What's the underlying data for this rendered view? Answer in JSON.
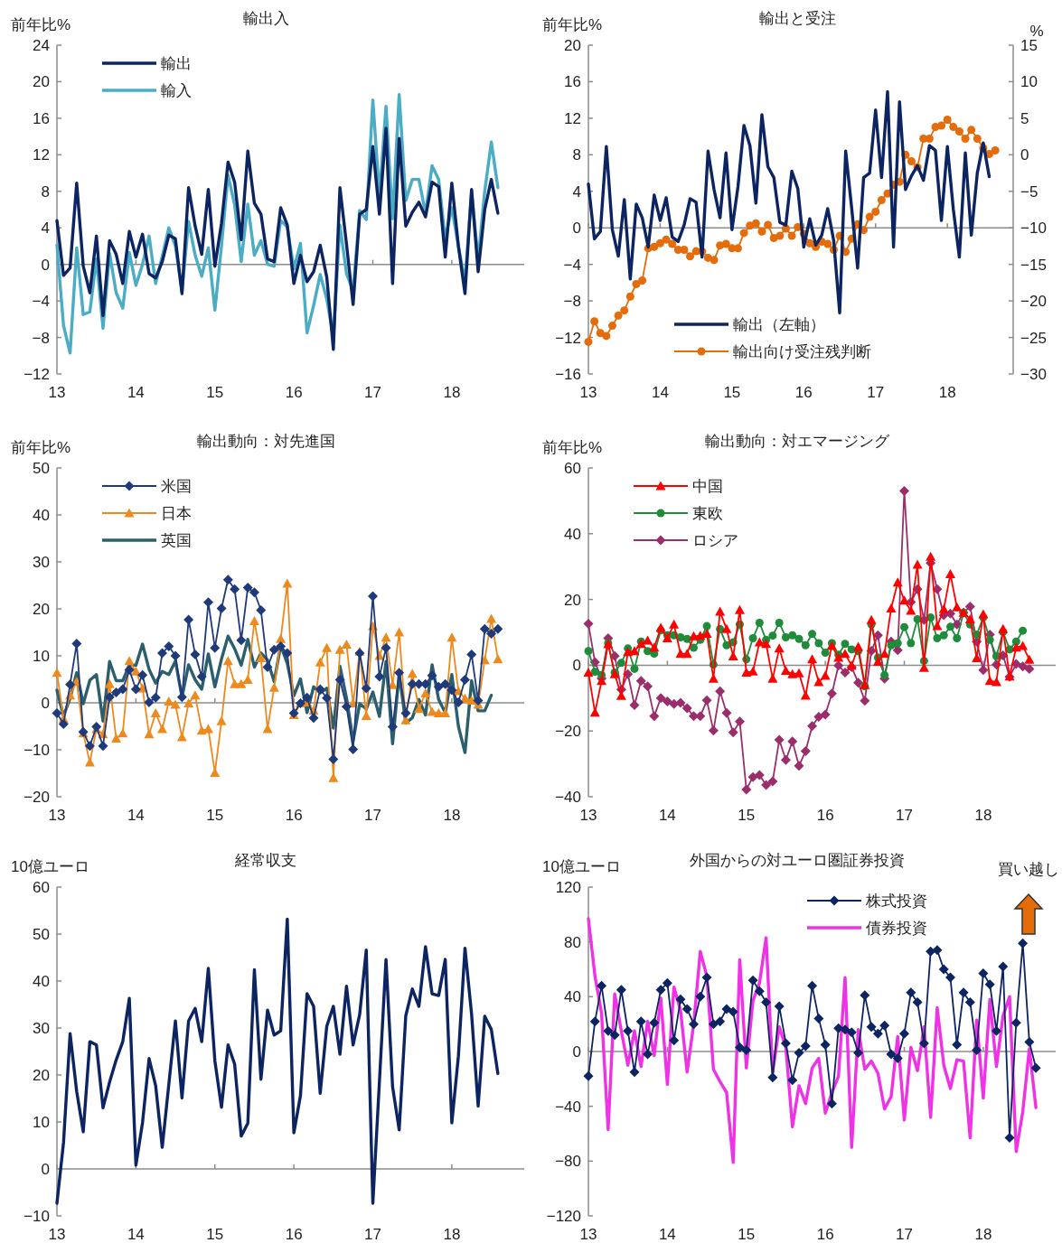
{
  "chart_data": [
    {
      "type": "line",
      "title": "輸出入",
      "ylabel": "前年比%",
      "legend": "top left",
      "x": [
        "2013-01",
        "2013-02",
        "2013-03",
        "2013-04",
        "2013-05",
        "2013-06",
        "2013-07",
        "2013-08",
        "2013-09",
        "2013-10",
        "2013-11",
        "2013-12",
        "2014-01",
        "2014-02",
        "2014-03",
        "2014-04",
        "2014-05",
        "2014-06",
        "2014-07",
        "2014-08",
        "2014-09",
        "2014-10",
        "2014-11",
        "2014-12",
        "2015-01",
        "2015-02",
        "2015-03",
        "2015-04",
        "2015-05",
        "2015-06",
        "2015-07",
        "2015-08",
        "2015-09",
        "2015-10",
        "2015-11",
        "2015-12",
        "2016-01",
        "2016-02",
        "2016-03",
        "2016-04",
        "2016-05",
        "2016-06",
        "2016-07",
        "2016-08",
        "2016-09",
        "2016-10",
        "2016-11",
        "2016-12",
        "2017-01",
        "2017-02",
        "2017-03",
        "2017-04",
        "2017-05",
        "2017-06",
        "2017-07",
        "2017-08",
        "2017-09",
        "2017-10",
        "2017-11",
        "2017-12",
        "2018-01",
        "2018-02",
        "2018-03",
        "2018-04",
        "2018-05",
        "2018-06",
        "2018-07",
        "2018-08"
      ],
      "xlim": [
        "2013-01",
        "2018-12"
      ],
      "xticks": [
        {
          "value": "2013",
          "label": "13"
        },
        {
          "value": "2014",
          "label": "14"
        },
        {
          "value": "2015",
          "label": "15"
        },
        {
          "value": "2016",
          "label": "16"
        },
        {
          "value": "2017",
          "label": "17"
        },
        {
          "value": "2018",
          "label": "18"
        }
      ],
      "ylim": [
        -12,
        24
      ],
      "yticks": [
        -12,
        -8,
        -4,
        0,
        4,
        8,
        12,
        16,
        20,
        24
      ],
      "series": [
        {
          "name": "輸出",
          "color": "#0c2461",
          "values": [
            4.8,
            -1.2,
            -0.4,
            8.9,
            -0.2,
            -3.1,
            3.1,
            -5.6,
            2.6,
            1.1,
            -2.1,
            3.6,
            0.8,
            3.3,
            -1.0,
            -1.5,
            0.3,
            3.2,
            2.8,
            -3.2,
            8.4,
            4.2,
            1.1,
            8.2,
            -0.2,
            4.5,
            11.2,
            9.0,
            2.7,
            12.4,
            6.7,
            5.5,
            0.6,
            0.3,
            6.2,
            4.3,
            -2.1,
            1.0,
            -1.9,
            -0.8,
            2.1,
            -1.4,
            -9.3,
            8.4,
            2.2,
            -4.4,
            5.5,
            6.0,
            12.9,
            5.5,
            14.9,
            -2.1,
            13.8,
            4.2,
            5.7,
            6.8,
            5.2,
            9.0,
            8.5,
            0.8,
            8.9,
            2.0,
            -3.2,
            8.2,
            -0.8,
            6.0,
            9.3,
            5.6
          ]
        },
        {
          "name": "輸入",
          "color": "#4bacc6",
          "values": [
            2.1,
            -6.7,
            -9.7,
            1.8,
            -5.5,
            -5.2,
            0.6,
            -7.0,
            1.2,
            -3.1,
            -4.8,
            1.3,
            -2.3,
            0.0,
            3.1,
            -2.1,
            0.9,
            4.0,
            2.0,
            -3.0,
            4.7,
            1.0,
            -1.3,
            1.8,
            -5.0,
            2.0,
            9.8,
            6.5,
            0.3,
            6.6,
            1.0,
            2.6,
            0.0,
            -0.2,
            4.8,
            4.1,
            -0.5,
            2.3,
            -7.5,
            -4.5,
            -1.1,
            -3.8,
            -8.0,
            4.3,
            -1.0,
            -2.9,
            5.9,
            4.9,
            18.0,
            7.5,
            17.3,
            5.0,
            18.6,
            7.0,
            9.3,
            9.3,
            5.6,
            10.8,
            9.3,
            2.8,
            6.2,
            2.0,
            -1.9,
            8.0,
            0.5,
            8.0,
            13.4,
            8.4
          ]
        }
      ]
    },
    {
      "type": "line",
      "title": "輸出と受注",
      "ylabel": "前年比%",
      "y2label": "%",
      "legend": "bottom",
      "x": [
        "2013-01",
        "2013-02",
        "2013-03",
        "2013-04",
        "2013-05",
        "2013-06",
        "2013-07",
        "2013-08",
        "2013-09",
        "2013-10",
        "2013-11",
        "2013-12",
        "2014-01",
        "2014-02",
        "2014-03",
        "2014-04",
        "2014-05",
        "2014-06",
        "2014-07",
        "2014-08",
        "2014-09",
        "2014-10",
        "2014-11",
        "2014-12",
        "2015-01",
        "2015-02",
        "2015-03",
        "2015-04",
        "2015-05",
        "2015-06",
        "2015-07",
        "2015-08",
        "2015-09",
        "2015-10",
        "2015-11",
        "2015-12",
        "2016-01",
        "2016-02",
        "2016-03",
        "2016-04",
        "2016-05",
        "2016-06",
        "2016-07",
        "2016-08",
        "2016-09",
        "2016-10",
        "2016-11",
        "2016-12",
        "2017-01",
        "2017-02",
        "2017-03",
        "2017-04",
        "2017-05",
        "2017-06",
        "2017-07",
        "2017-08",
        "2017-09",
        "2017-10",
        "2017-11",
        "2017-12",
        "2018-01",
        "2018-02",
        "2018-03",
        "2018-04",
        "2018-05",
        "2018-06",
        "2018-07",
        "2018-08",
        "2018-09"
      ],
      "xlim": [
        "2013-01",
        "2018-12"
      ],
      "xticks": [
        {
          "value": "2013",
          "label": "13"
        },
        {
          "value": "2014",
          "label": "14"
        },
        {
          "value": "2015",
          "label": "15"
        },
        {
          "value": "2016",
          "label": "16"
        },
        {
          "value": "2017",
          "label": "17"
        },
        {
          "value": "2018",
          "label": "18"
        }
      ],
      "ylim": [
        -16,
        20
      ],
      "yticks": [
        -16,
        -12,
        -8,
        -4,
        0,
        4,
        8,
        12,
        16,
        20
      ],
      "y2lim": [
        -30,
        15
      ],
      "y2ticks": [
        -30,
        -25,
        -20,
        -15,
        -10,
        -5,
        0,
        5,
        10,
        15
      ],
      "series": [
        {
          "name": "輸出（左軸）",
          "color": "#0c2461",
          "values": [
            4.8,
            -1.2,
            -0.4,
            8.9,
            -0.2,
            -3.1,
            3.1,
            -5.6,
            2.6,
            1.1,
            -2.1,
            3.6,
            0.8,
            3.3,
            -1.0,
            -1.5,
            0.3,
            3.2,
            2.8,
            -3.2,
            8.4,
            4.2,
            1.1,
            8.2,
            -0.2,
            4.5,
            11.2,
            9.0,
            2.7,
            12.4,
            6.7,
            5.5,
            0.6,
            0.3,
            6.2,
            4.3,
            -2.1,
            1.0,
            -1.9,
            -0.8,
            2.1,
            -1.4,
            -9.3,
            8.4,
            2.2,
            -4.4,
            5.5,
            6.0,
            12.9,
            5.5,
            14.9,
            -2.1,
            13.8,
            4.2,
            5.7,
            6.8,
            5.2,
            9.0,
            8.5,
            0.8,
            8.9,
            2.0,
            -3.2,
            8.2,
            -0.8,
            6.0,
            9.3,
            5.6,
            null
          ]
        },
        {
          "name": "輸出向け受注残判断",
          "color": "#e46c0a",
          "axis": "y2",
          "marker": "circle",
          "values": [
            -25.6,
            -22.8,
            -24.4,
            -24.8,
            -23.4,
            -22.0,
            -21.3,
            -19.4,
            -17.7,
            -17.2,
            -12.8,
            -12.6,
            -12.1,
            -11.6,
            -12.2,
            -13.0,
            -13.0,
            -13.9,
            -13.2,
            -13.2,
            -14.1,
            -14.4,
            -12.4,
            -12.2,
            -12.8,
            -12.8,
            -10.7,
            -9.7,
            -9.4,
            -10.5,
            -9.6,
            -11.4,
            -11.1,
            -10.1,
            -11.1,
            -9.9,
            -10.8,
            -12.1,
            -12.6,
            -11.9,
            -12.2,
            -13.0,
            -11.1,
            -13.3,
            -11.5,
            -9.5,
            -10.3,
            -8.5,
            -7.8,
            -6.2,
            -5.3,
            -4.1,
            -3.7,
            0.0,
            -0.9,
            -1.7,
            2.2,
            2.2,
            3.8,
            4.0,
            4.8,
            3.8,
            3.2,
            2.2,
            3.4,
            2.2,
            0.9,
            0.1,
            0.6
          ]
        }
      ]
    },
    {
      "type": "line",
      "title": "輸出動向：対先進国",
      "ylabel": "前年比%",
      "legend": "top left",
      "x": [
        "2013-01",
        "2013-02",
        "2013-03",
        "2013-04",
        "2013-05",
        "2013-06",
        "2013-07",
        "2013-08",
        "2013-09",
        "2013-10",
        "2013-11",
        "2013-12",
        "2014-01",
        "2014-02",
        "2014-03",
        "2014-04",
        "2014-05",
        "2014-06",
        "2014-07",
        "2014-08",
        "2014-09",
        "2014-10",
        "2014-11",
        "2014-12",
        "2015-01",
        "2015-02",
        "2015-03",
        "2015-04",
        "2015-05",
        "2015-06",
        "2015-07",
        "2015-08",
        "2015-09",
        "2015-10",
        "2015-11",
        "2015-12",
        "2016-01",
        "2016-02",
        "2016-03",
        "2016-04",
        "2016-05",
        "2016-06",
        "2016-07",
        "2016-08",
        "2016-09",
        "2016-10",
        "2016-11",
        "2016-12",
        "2017-01",
        "2017-02",
        "2017-03",
        "2017-04",
        "2017-05",
        "2017-06",
        "2017-07",
        "2017-08",
        "2017-09",
        "2017-10",
        "2017-11",
        "2017-12",
        "2018-01",
        "2018-02",
        "2018-03",
        "2018-04",
        "2018-05",
        "2018-06",
        "2018-07",
        "2018-08"
      ],
      "xlim": [
        "2013-01",
        "2018-12"
      ],
      "xticks": [
        {
          "value": "2013",
          "label": "13"
        },
        {
          "value": "2014",
          "label": "14"
        },
        {
          "value": "2015",
          "label": "15"
        },
        {
          "value": "2016",
          "label": "16"
        },
        {
          "value": "2017",
          "label": "17"
        },
        {
          "value": "2018",
          "label": "18"
        }
      ],
      "ylim": [
        -20,
        50
      ],
      "yticks": [
        -20,
        -10,
        0,
        10,
        20,
        30,
        40,
        50
      ],
      "series": [
        {
          "name": "米国",
          "color": "#1f3a7a",
          "marker": "diamond",
          "values": [
            -2.2,
            -4.5,
            3.9,
            12.6,
            -6.2,
            -9.2,
            -5.1,
            -9.2,
            1.2,
            2.2,
            2.9,
            7.0,
            2.9,
            5.9,
            0.1,
            1.1,
            10.6,
            12.0,
            10.0,
            1.2,
            17.7,
            10.3,
            5.6,
            21.4,
            11.7,
            20.1,
            26.2,
            24.2,
            13.3,
            24.5,
            23.5,
            19.7,
            7.6,
            11.3,
            12.0,
            10.6,
            -2.2,
            -0.1,
            1.1,
            -3.2,
            2.9,
            1.0,
            -12.0,
            4.9,
            -0.8,
            -9.9,
            10.6,
            3.1,
            22.7,
            5.6,
            11.7,
            -5.1,
            6.4,
            -2.2,
            4.0,
            4.0,
            4.0,
            5.8,
            3.4,
            4.0,
            2.7,
            0.1,
            4.9,
            10.3,
            0.5,
            15.7,
            14.7,
            15.7
          ]
        },
        {
          "name": "日本",
          "color": "#ee8a1d",
          "marker": "triangle",
          "values": [
            6.4,
            -3.4,
            1.6,
            4.5,
            -6.5,
            -12.7,
            -5.6,
            -6.7,
            4.0,
            -7.6,
            -6.5,
            8.9,
            6.7,
            3.1,
            -6.7,
            -2.2,
            -5.6,
            0.3,
            -0.4,
            -7.3,
            -0.1,
            1.6,
            -5.9,
            -5.6,
            -14.9,
            -3.9,
            8.9,
            4.0,
            4.0,
            4.9,
            17.4,
            9.5,
            -5.6,
            3.2,
            13.6,
            25.4,
            -2.6,
            -0.1,
            0.1,
            -1.7,
            8.6,
            11.7,
            -16.0,
            11.3,
            12.4,
            -0.1,
            10.9,
            -2.8,
            16.3,
            10.0,
            13.9,
            3.8,
            15.0,
            -3.7,
            6.2,
            -1.3,
            2.0,
            -1.9,
            -2.2,
            -2.2,
            13.9,
            2.5,
            0.9,
            0.5,
            -0.4,
            9.1,
            17.9,
            9.3
          ]
        },
        {
          "name": "英国",
          "color": "#2c5f6e",
          "values": [
            2.7,
            -2.8,
            1.0,
            6.4,
            -0.2,
            4.8,
            6.0,
            -3.9,
            8.8,
            4.7,
            4.7,
            8.1,
            8.0,
            12.5,
            7.1,
            4.2,
            6.7,
            6.0,
            8.9,
            1.2,
            8.1,
            4.9,
            2.9,
            10.4,
            3.4,
            9.3,
            14.2,
            11.5,
            8.0,
            13.5,
            7.6,
            10.6,
            9.1,
            4.5,
            12.2,
            8.4,
            1.5,
            5.1,
            -2.1,
            3.4,
            2.1,
            3.1,
            -5.4,
            7.8,
            1.0,
            -8.1,
            -0.2,
            -1.3,
            2.3,
            -2.9,
            8.8,
            -8.7,
            6.2,
            -4.3,
            -3.2,
            0.7,
            -2.6,
            8.1,
            0.7,
            -2.1,
            6.0,
            -5.0,
            -10.6,
            4.7,
            -1.7,
            -1.7,
            1.6,
            null
          ]
        }
      ]
    },
    {
      "type": "line",
      "title": "輸出動向：対エマージング",
      "ylabel": "前年比%",
      "legend": "top left",
      "x": [
        "2013-01",
        "2013-02",
        "2013-03",
        "2013-04",
        "2013-05",
        "2013-06",
        "2013-07",
        "2013-08",
        "2013-09",
        "2013-10",
        "2013-11",
        "2013-12",
        "2014-01",
        "2014-02",
        "2014-03",
        "2014-04",
        "2014-05",
        "2014-06",
        "2014-07",
        "2014-08",
        "2014-09",
        "2014-10",
        "2014-11",
        "2014-12",
        "2015-01",
        "2015-02",
        "2015-03",
        "2015-04",
        "2015-05",
        "2015-06",
        "2015-07",
        "2015-08",
        "2015-09",
        "2015-10",
        "2015-11",
        "2015-12",
        "2016-01",
        "2016-02",
        "2016-03",
        "2016-04",
        "2016-05",
        "2016-06",
        "2016-07",
        "2016-08",
        "2016-09",
        "2016-10",
        "2016-11",
        "2016-12",
        "2017-01",
        "2017-02",
        "2017-03",
        "2017-04",
        "2017-05",
        "2017-06",
        "2017-07",
        "2017-08",
        "2017-09",
        "2017-10",
        "2017-11",
        "2017-12",
        "2018-01",
        "2018-02",
        "2018-03",
        "2018-04",
        "2018-05",
        "2018-06",
        "2018-07",
        "2018-08"
      ],
      "xlim": [
        "2013-01",
        "2018-12"
      ],
      "xticks": [
        {
          "value": "2013",
          "label": "13"
        },
        {
          "value": "2014",
          "label": "14"
        },
        {
          "value": "2015",
          "label": "15"
        },
        {
          "value": "2016",
          "label": "16"
        },
        {
          "value": "2017",
          "label": "17"
        },
        {
          "value": "2018",
          "label": "18"
        }
      ],
      "ylim": [
        -40,
        60
      ],
      "yticks": [
        -40,
        -20,
        0,
        20,
        40,
        60
      ],
      "series": [
        {
          "name": "中国",
          "color": "#ff0000",
          "marker": "triangle",
          "values": [
            -2.2,
            -14.4,
            -4.8,
            6.4,
            -2.7,
            -9.3,
            4.0,
            4.3,
            6.5,
            7.5,
            5.4,
            11.4,
            8.2,
            12.4,
            3.5,
            3.5,
            8.8,
            9.0,
            9.6,
            -4.1,
            16.3,
            11.0,
            2.7,
            16.8,
            -2.2,
            -1.9,
            7.0,
            6.5,
            -4.1,
            5.1,
            -1.7,
            -2.7,
            -2.4,
            -9.2,
            1.8,
            -5.1,
            -3.2,
            5.9,
            2.3,
            3.5,
            -0.1,
            5.6,
            -6.0,
            13.8,
            1.1,
            3.5,
            17.3,
            25.2,
            19.7,
            16.6,
            30.6,
            -0.8,
            33.0,
            11.9,
            17.1,
            27.7,
            17.6,
            16.0,
            14.0,
            2.2,
            15.5,
            -4.8,
            -5.1,
            11.0,
            -3.4,
            5.4,
            5.9,
            1.7
          ]
        },
        {
          "name": "東欧",
          "color": "#1e8c3a",
          "marker": "circle",
          "values": [
            4.3,
            -2.0,
            -3.0,
            6.7,
            -2.2,
            0.7,
            5.1,
            -1.1,
            7.2,
            4.3,
            3.5,
            10.6,
            9.1,
            9.1,
            8.5,
            8.0,
            5.3,
            7.7,
            11.9,
            0.2,
            11.0,
            6.1,
            7.0,
            12.4,
            1.8,
            8.2,
            12.9,
            7.7,
            9.0,
            12.9,
            8.5,
            9.1,
            8.0,
            6.1,
            9.5,
            6.7,
            3.8,
            6.7,
            3.2,
            6.5,
            4.8,
            4.3,
            -6.4,
            12.4,
            2.3,
            -3.0,
            6.1,
            6.7,
            11.6,
            6.7,
            14.0,
            1.3,
            14.5,
            8.2,
            9.1,
            11.7,
            8.2,
            16.0,
            12.4,
            9.3,
            14.5,
            7.7,
            2.8,
            10.1,
            4.8,
            7.2,
            10.5,
            null
          ]
        },
        {
          "name": "ロシア",
          "color": "#9b2d6b",
          "marker": "diamond",
          "values": [
            12.6,
            0.9,
            -4.0,
            8.2,
            2.8,
            -7.4,
            -2.7,
            -12.1,
            -4.8,
            -6.4,
            -15.5,
            -10.0,
            -11.0,
            -11.8,
            -11.4,
            -13.1,
            -15.5,
            -15.5,
            -10.7,
            -19.9,
            -7.9,
            -14.5,
            -20.4,
            -17.1,
            -37.8,
            -34.0,
            -33.4,
            -36.4,
            -35.3,
            -22.7,
            -28.8,
            -23.2,
            -30.6,
            -26.1,
            -18.5,
            -15.7,
            -15.0,
            -8.6,
            -0.1,
            -2.2,
            -0.6,
            -5.3,
            -10.8,
            4.4,
            9.1,
            -4.1,
            7.2,
            4.6,
            53.0,
            19.2,
            23.1,
            13.8,
            31.1,
            23.1,
            15.2,
            15.7,
            12.4,
            16.0,
            17.8,
            7.2,
            -1.5,
            9.3,
            0.2,
            3.0,
            -3.5,
            0.4,
            -0.4,
            -1.1
          ]
        }
      ]
    },
    {
      "type": "line",
      "title": "経常収支",
      "ylabel": "10億ユーロ",
      "x": [
        "2013-01",
        "2013-02",
        "2013-03",
        "2013-04",
        "2013-05",
        "2013-06",
        "2013-07",
        "2013-08",
        "2013-09",
        "2013-10",
        "2013-11",
        "2013-12",
        "2014-01",
        "2014-02",
        "2014-03",
        "2014-04",
        "2014-05",
        "2014-06",
        "2014-07",
        "2014-08",
        "2014-09",
        "2014-10",
        "2014-11",
        "2014-12",
        "2015-01",
        "2015-02",
        "2015-03",
        "2015-04",
        "2015-05",
        "2015-06",
        "2015-07",
        "2015-08",
        "2015-09",
        "2015-10",
        "2015-11",
        "2015-12",
        "2016-01",
        "2016-02",
        "2016-03",
        "2016-04",
        "2016-05",
        "2016-06",
        "2016-07",
        "2016-08",
        "2016-09",
        "2016-10",
        "2016-11",
        "2016-12",
        "2017-01",
        "2017-02",
        "2017-03",
        "2017-04",
        "2017-05",
        "2017-06",
        "2017-07",
        "2017-08",
        "2017-09",
        "2017-10",
        "2017-11",
        "2017-12",
        "2018-01",
        "2018-02",
        "2018-03",
        "2018-04",
        "2018-05",
        "2018-06",
        "2018-07",
        "2018-08"
      ],
      "xlim": [
        "2013-01",
        "2018-12"
      ],
      "xticks": [
        {
          "value": "2013",
          "label": "13"
        },
        {
          "value": "2014",
          "label": "14"
        },
        {
          "value": "2015",
          "label": "15"
        },
        {
          "value": "2016",
          "label": "16"
        },
        {
          "value": "2017",
          "label": "17"
        },
        {
          "value": "2018",
          "label": "18"
        }
      ],
      "ylim": [
        -10,
        60
      ],
      "yticks": [
        -10,
        0,
        10,
        20,
        30,
        40,
        50,
        60
      ],
      "series": [
        {
          "color": "#0c2461",
          "values": [
            -7.3,
            5.6,
            28.8,
            16.5,
            7.9,
            27.1,
            26.4,
            13.0,
            18.5,
            23.2,
            27.1,
            36.3,
            0.8,
            9.8,
            23.5,
            17.7,
            4.6,
            18.0,
            31.5,
            15.1,
            31.5,
            34.2,
            27.1,
            42.7,
            23.0,
            13.1,
            26.4,
            22.3,
            7.0,
            9.7,
            42.4,
            19.1,
            33.8,
            28.5,
            29.4,
            53.2,
            7.7,
            15.6,
            37.3,
            34.6,
            16.1,
            30.4,
            34.6,
            24.4,
            38.9,
            26.4,
            32.9,
            46.6,
            -7.3,
            18.6,
            44.6,
            17.5,
            8.3,
            32.6,
            38.3,
            34.6,
            47.3,
            37.3,
            36.9,
            44.6,
            9.8,
            24.0,
            47.0,
            33.0,
            13.4,
            32.5,
            29.7,
            20.3
          ]
        }
      ]
    },
    {
      "type": "line",
      "title": "外国からの対ユーロ圏証券投資",
      "ylabel": "10億ユーロ",
      "legend": "top right",
      "annotations": [
        "買い越し"
      ],
      "x": [
        "2013-01",
        "2013-02",
        "2013-03",
        "2013-04",
        "2013-05",
        "2013-06",
        "2013-07",
        "2013-08",
        "2013-09",
        "2013-10",
        "2013-11",
        "2013-12",
        "2014-01",
        "2014-02",
        "2014-03",
        "2014-04",
        "2014-05",
        "2014-06",
        "2014-07",
        "2014-08",
        "2014-09",
        "2014-10",
        "2014-11",
        "2014-12",
        "2015-01",
        "2015-02",
        "2015-03",
        "2015-04",
        "2015-05",
        "2015-06",
        "2015-07",
        "2015-08",
        "2015-09",
        "2015-10",
        "2015-11",
        "2015-12",
        "2016-01",
        "2016-02",
        "2016-03",
        "2016-04",
        "2016-05",
        "2016-06",
        "2016-07",
        "2016-08",
        "2016-09",
        "2016-10",
        "2016-11",
        "2016-12",
        "2017-01",
        "2017-02",
        "2017-03",
        "2017-04",
        "2017-05",
        "2017-06",
        "2017-07",
        "2017-08",
        "2017-09",
        "2017-10",
        "2017-11",
        "2017-12",
        "2018-01",
        "2018-02",
        "2018-03",
        "2018-04",
        "2018-05",
        "2018-06",
        "2018-07",
        "2018-08",
        "2018-09"
      ],
      "xlim": [
        "2013-01",
        "2018-12"
      ],
      "xticks": [
        {
          "value": "2013",
          "label": "13"
        },
        {
          "value": "2014",
          "label": "14"
        },
        {
          "value": "2015",
          "label": "15"
        },
        {
          "value": "2016",
          "label": "16"
        },
        {
          "value": "2017",
          "label": "17"
        },
        {
          "value": "2018",
          "label": "18"
        }
      ],
      "ylim": [
        -120,
        120
      ],
      "yticks": [
        -120,
        -80,
        -40,
        0,
        40,
        80,
        120
      ],
      "series": [
        {
          "name": "株式投資",
          "color": "#0c2461",
          "marker": "diamond",
          "values": [
            -18,
            22,
            48,
            15,
            12,
            45,
            15,
            -15,
            22,
            -2,
            21,
            45,
            50,
            8,
            38,
            31,
            20,
            40,
            54,
            20,
            22,
            31,
            29,
            3,
            1,
            52,
            44,
            36,
            -19,
            33,
            6,
            -21,
            -1,
            4,
            48,
            24,
            5,
            -38,
            17,
            16,
            14,
            -1,
            41,
            18,
            13,
            19,
            -2,
            -5,
            13,
            43,
            36,
            6,
            73,
            74,
            60,
            54,
            5,
            43,
            36,
            1,
            57,
            49,
            15,
            62,
            -63,
            21,
            79,
            7,
            -12
          ]
        },
        {
          "name": "債券投資",
          "color": "#f032e6",
          "values": [
            97,
            55,
            28,
            -57,
            42,
            15,
            -10,
            15,
            -11,
            22,
            -3,
            39,
            -24,
            47,
            30,
            -15,
            20,
            73,
            55,
            -13,
            -22,
            -30,
            -81,
            67,
            -12,
            37,
            50,
            83,
            -15,
            18,
            3,
            -55,
            -25,
            -38,
            -12,
            -5,
            -45,
            -30,
            -18,
            54,
            -70,
            16,
            -13,
            -7,
            -16,
            -42,
            -33,
            11,
            -50,
            3,
            -14,
            18,
            -48,
            32,
            -10,
            -27,
            -6,
            -7,
            -63,
            23,
            -34,
            38,
            -11,
            26,
            40,
            -73,
            -44,
            2,
            -41
          ]
        }
      ]
    }
  ]
}
